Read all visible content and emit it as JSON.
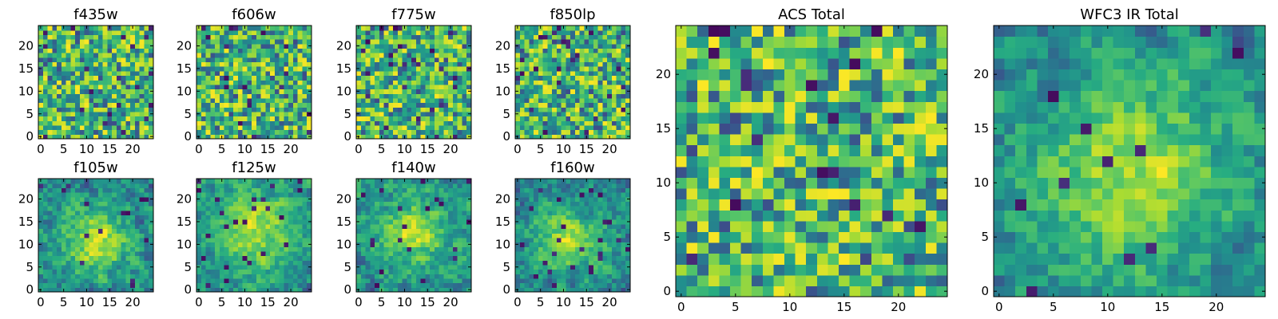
{
  "chart_data": [
    {
      "type": "heatmap",
      "title": "f435w",
      "grid_size": 25,
      "xticks": [
        0,
        5,
        10,
        15,
        20
      ],
      "yticks": [
        0,
        5,
        10,
        15,
        20
      ],
      "xlim": [
        -0.5,
        24.5
      ],
      "ylim": [
        -0.5,
        24.5
      ],
      "colormap": "viridis",
      "seed": 11,
      "smooth": 0,
      "blob": null
    },
    {
      "type": "heatmap",
      "title": "f606w",
      "grid_size": 25,
      "xticks": [
        0,
        5,
        10,
        15,
        20
      ],
      "yticks": [
        0,
        5,
        10,
        15,
        20
      ],
      "xlim": [
        -0.5,
        24.5
      ],
      "ylim": [
        -0.5,
        24.5
      ],
      "colormap": "viridis",
      "seed": 23,
      "smooth": 0,
      "blob": null
    },
    {
      "type": "heatmap",
      "title": "f775w",
      "grid_size": 25,
      "xticks": [
        0,
        5,
        10,
        15,
        20
      ],
      "yticks": [
        0,
        5,
        10,
        15,
        20
      ],
      "xlim": [
        -0.5,
        24.5
      ],
      "ylim": [
        -0.5,
        24.5
      ],
      "colormap": "viridis",
      "seed": 37,
      "smooth": 0,
      "blob": null
    },
    {
      "type": "heatmap",
      "title": "f850lp",
      "grid_size": 25,
      "xticks": [
        0,
        5,
        10,
        15,
        20
      ],
      "yticks": [
        0,
        5,
        10,
        15,
        20
      ],
      "xlim": [
        -0.5,
        24.5
      ],
      "ylim": [
        -0.5,
        24.5
      ],
      "colormap": "viridis",
      "seed": 41,
      "smooth": 0,
      "blob": null
    },
    {
      "type": "heatmap",
      "title": "f105w",
      "grid_size": 25,
      "xticks": [
        0,
        5,
        10,
        15,
        20
      ],
      "yticks": [
        0,
        5,
        10,
        15,
        20
      ],
      "xlim": [
        -0.5,
        24.5
      ],
      "ylim": [
        -0.5,
        24.5
      ],
      "colormap": "viridis",
      "seed": 53,
      "smooth": 1,
      "blob": [
        12,
        11,
        5
      ]
    },
    {
      "type": "heatmap",
      "title": "f125w",
      "grid_size": 25,
      "xticks": [
        0,
        5,
        10,
        15,
        20
      ],
      "yticks": [
        0,
        5,
        10,
        15,
        20
      ],
      "xlim": [
        -0.5,
        24.5
      ],
      "ylim": [
        -0.5,
        24.5
      ],
      "colormap": "viridis",
      "seed": 67,
      "smooth": 1,
      "blob": [
        12,
        13,
        6
      ]
    },
    {
      "type": "heatmap",
      "title": "f140w",
      "grid_size": 25,
      "xticks": [
        0,
        5,
        10,
        15,
        20
      ],
      "yticks": [
        0,
        5,
        10,
        15,
        20
      ],
      "xlim": [
        -0.5,
        24.5
      ],
      "ylim": [
        -0.5,
        24.5
      ],
      "colormap": "viridis",
      "seed": 71,
      "smooth": 1,
      "blob": [
        12,
        13,
        4
      ]
    },
    {
      "type": "heatmap",
      "title": "f160w",
      "grid_size": 25,
      "xticks": [
        0,
        5,
        10,
        15,
        20
      ],
      "yticks": [
        0,
        5,
        10,
        15,
        20
      ],
      "xlim": [
        -0.5,
        24.5
      ],
      "ylim": [
        -0.5,
        24.5
      ],
      "colormap": "viridis",
      "seed": 83,
      "smooth": 1,
      "blob": [
        11,
        11,
        5
      ]
    },
    {
      "type": "heatmap",
      "title": "ACS Total",
      "grid_size": 25,
      "xticks": [
        0,
        5,
        10,
        15,
        20
      ],
      "yticks": [
        0,
        5,
        10,
        15,
        20
      ],
      "xlim": [
        -0.5,
        24.5
      ],
      "ylim": [
        -0.5,
        24.5
      ],
      "colormap": "viridis",
      "seed": 97,
      "smooth": 0,
      "blob": null,
      "noise_scale": 0.6
    },
    {
      "type": "heatmap",
      "title": "WFC3 IR Total",
      "grid_size": 25,
      "xticks": [
        0,
        5,
        10,
        15,
        20
      ],
      "yticks": [
        0,
        5,
        10,
        15,
        20
      ],
      "xlim": [
        -0.5,
        24.5
      ],
      "ylim": [
        -0.5,
        24.5
      ],
      "colormap": "viridis",
      "seed": 101,
      "smooth": 1,
      "blob": [
        12,
        11,
        6
      ],
      "noise_scale": 0.5
    }
  ]
}
